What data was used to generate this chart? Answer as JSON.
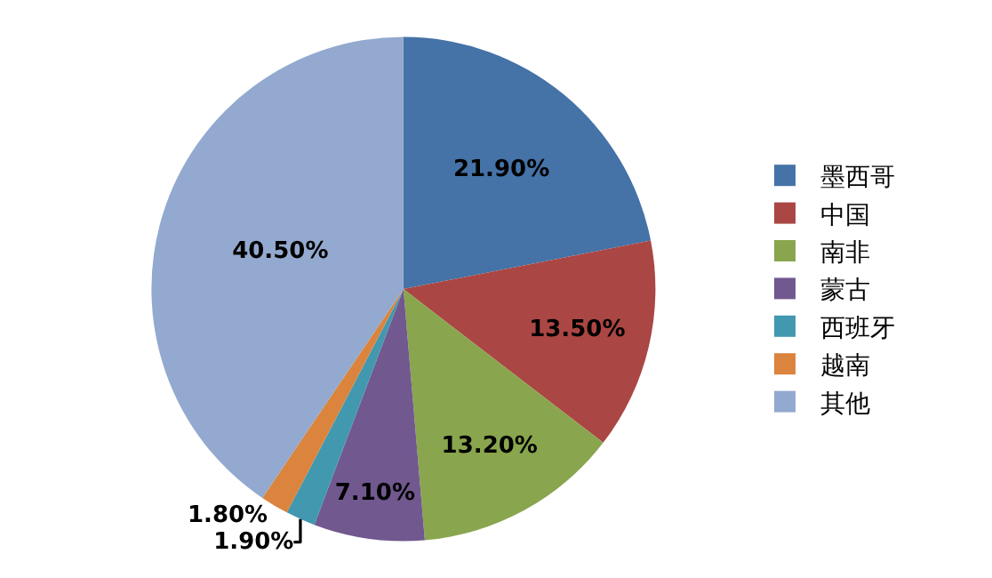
{
  "chart_data": {
    "type": "pie",
    "categories": [
      "墨西哥",
      "中国",
      "南非",
      "蒙古",
      "西班牙",
      "越南",
      "其他"
    ],
    "values": [
      21.9,
      13.5,
      13.2,
      7.1,
      1.9,
      1.8,
      40.5
    ],
    "value_labels": [
      "21.90%",
      "13.50%",
      "13.20%",
      "7.10%",
      "1.90%",
      "1.80%",
      "40.50%"
    ],
    "colors": [
      "#4572a7",
      "#aa4643",
      "#89a54e",
      "#71588f",
      "#4198af",
      "#db843d",
      "#93a9cf"
    ],
    "legend": "right"
  }
}
